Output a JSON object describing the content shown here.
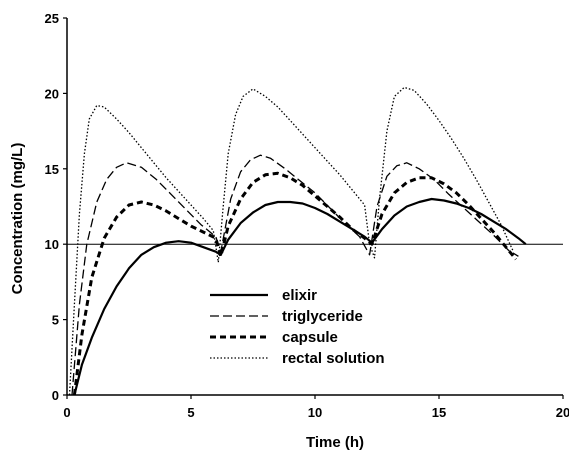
{
  "chart_data": {
    "type": "line",
    "title": "",
    "xlabel": "Time (h)",
    "ylabel": "Concentration (mg/L)",
    "xlim": [
      0,
      20
    ],
    "ylim": [
      0,
      25
    ],
    "xticks": [
      0,
      5,
      10,
      15,
      20
    ],
    "yticks": [
      0,
      5,
      10,
      15,
      20,
      25
    ],
    "grid": false,
    "legend_position": "center",
    "reference_line": {
      "y": 10
    },
    "series": [
      {
        "name": "elixir",
        "style": "solid",
        "x": [
          0.3,
          0.6,
          1.0,
          1.5,
          2.0,
          2.5,
          3.0,
          3.5,
          4.0,
          4.5,
          5.0,
          5.5,
          6.0,
          6.2,
          6.5,
          7.0,
          7.5,
          8.0,
          8.5,
          9.0,
          9.5,
          10.0,
          10.5,
          11.0,
          11.5,
          12.0,
          12.3,
          12.7,
          13.2,
          13.7,
          14.2,
          14.7,
          15.2,
          15.7,
          16.2,
          16.7,
          17.2,
          17.7,
          18.2,
          18.5
        ],
        "y": [
          0.0,
          2.0,
          3.8,
          5.7,
          7.2,
          8.4,
          9.3,
          9.8,
          10.1,
          10.2,
          10.1,
          9.8,
          9.5,
          9.3,
          10.3,
          11.4,
          12.1,
          12.6,
          12.8,
          12.8,
          12.7,
          12.4,
          12.0,
          11.5,
          11.0,
          10.5,
          10.1,
          11.0,
          11.9,
          12.5,
          12.8,
          13.0,
          12.9,
          12.7,
          12.4,
          12.0,
          11.5,
          11.0,
          10.4,
          10.0
        ]
      },
      {
        "name": "triglyceride",
        "style": "long-dash",
        "x": [
          0.2,
          0.5,
          0.8,
          1.2,
          1.6,
          2.0,
          2.4,
          3.0,
          3.6,
          4.2,
          4.8,
          5.4,
          6.0,
          6.2,
          6.6,
          7.0,
          7.4,
          7.8,
          8.2,
          8.8,
          9.4,
          10.0,
          10.6,
          11.2,
          11.8,
          12.2,
          12.5,
          12.9,
          13.3,
          13.7,
          14.2,
          14.8,
          15.4,
          16.0,
          16.6,
          17.2,
          17.8,
          18.2
        ],
        "y": [
          0.0,
          6.0,
          10.0,
          12.8,
          14.3,
          15.1,
          15.4,
          15.1,
          14.3,
          13.3,
          12.3,
          11.3,
          10.5,
          9.5,
          13.0,
          14.8,
          15.6,
          15.9,
          15.7,
          15.0,
          14.2,
          13.4,
          12.4,
          11.4,
          10.5,
          9.3,
          12.5,
          14.5,
          15.2,
          15.4,
          15.0,
          14.3,
          13.3,
          12.4,
          11.5,
          10.6,
          9.6,
          9.2
        ]
      },
      {
        "name": "capsule",
        "style": "dash",
        "x": [
          0.3,
          0.6,
          1.0,
          1.5,
          2.0,
          2.5,
          3.0,
          3.5,
          4.0,
          4.5,
          5.0,
          5.5,
          6.0,
          6.2,
          6.5,
          7.0,
          7.5,
          8.0,
          8.5,
          9.0,
          9.5,
          10.0,
          10.5,
          11.0,
          11.5,
          12.0,
          12.3,
          12.7,
          13.2,
          13.7,
          14.2,
          14.7,
          15.2,
          15.7,
          16.2,
          16.7,
          17.2,
          17.7,
          18.1
        ],
        "y": [
          0.0,
          4.0,
          7.8,
          10.4,
          11.8,
          12.6,
          12.8,
          12.6,
          12.2,
          11.7,
          11.2,
          10.8,
          10.4,
          9.2,
          11.2,
          13.0,
          14.1,
          14.6,
          14.7,
          14.4,
          13.9,
          13.2,
          12.5,
          11.8,
          11.0,
          10.4,
          10.0,
          12.0,
          13.4,
          14.1,
          14.4,
          14.4,
          14.0,
          13.4,
          12.6,
          11.7,
          10.8,
          9.8,
          9.0
        ]
      },
      {
        "name": "rectal solution",
        "style": "dotted",
        "x": [
          0.1,
          0.3,
          0.5,
          0.7,
          0.9,
          1.2,
          1.5,
          2.0,
          2.5,
          3.0,
          3.5,
          4.0,
          4.5,
          5.0,
          5.5,
          5.9,
          6.1,
          6.3,
          6.5,
          6.8,
          7.1,
          7.5,
          8.0,
          8.5,
          9.0,
          9.5,
          10.0,
          10.5,
          11.0,
          11.5,
          12.0,
          12.2,
          12.4,
          12.6,
          12.9,
          13.2,
          13.6,
          14.0,
          14.5,
          15.0,
          15.5,
          16.0,
          16.5,
          17.0,
          17.5,
          18.0
        ],
        "y": [
          0.0,
          6.0,
          12.0,
          16.0,
          18.3,
          19.2,
          19.1,
          18.3,
          17.4,
          16.4,
          15.4,
          14.4,
          13.5,
          12.6,
          11.7,
          10.9,
          8.8,
          12.5,
          16.0,
          18.6,
          19.8,
          20.3,
          19.8,
          19.1,
          18.2,
          17.3,
          16.4,
          15.5,
          14.6,
          13.6,
          12.6,
          10.0,
          9.1,
          13.0,
          17.5,
          19.8,
          20.4,
          20.2,
          19.3,
          18.2,
          17.0,
          15.7,
          14.3,
          12.8,
          11.3,
          9.5
        ]
      }
    ]
  }
}
